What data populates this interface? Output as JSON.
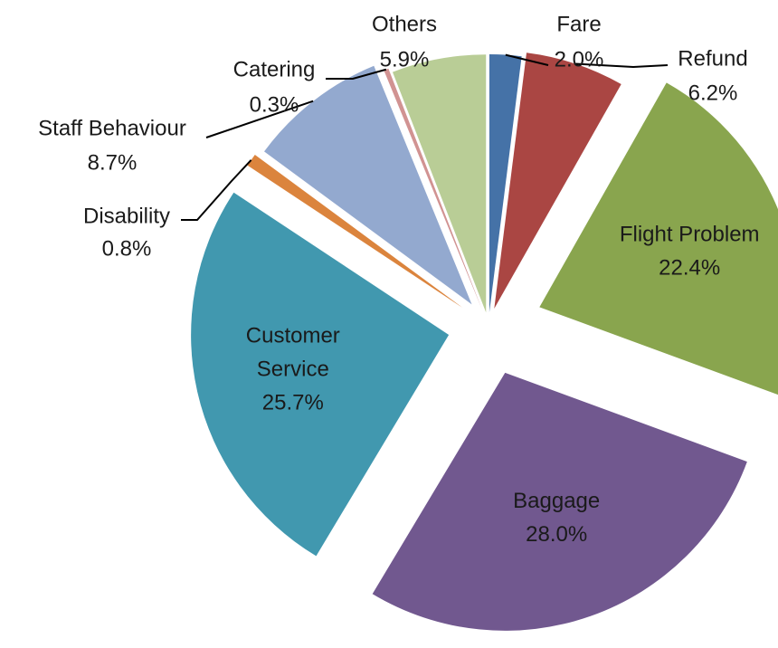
{
  "chart_data": {
    "type": "pie",
    "title": "",
    "start_angle_deg": 0,
    "direction": "clockwise",
    "exploded": true,
    "slices": [
      {
        "name": "Fare",
        "value": 2.0,
        "label": "2.0%",
        "color": "#4572A7"
      },
      {
        "name": "Refund",
        "value": 6.2,
        "label": "6.2%",
        "color": "#AA4643"
      },
      {
        "name": "Flight Problem",
        "value": 22.4,
        "label": "22.4%",
        "color": "#89A54E"
      },
      {
        "name": "Baggage",
        "value": 28.0,
        "label": "28.0%",
        "color": "#71588F"
      },
      {
        "name": "Customer Service",
        "value": 25.7,
        "label": "25.7%",
        "color": "#4198AF"
      },
      {
        "name": "Disability",
        "value": 0.8,
        "label": "0.8%",
        "color": "#DB843D"
      },
      {
        "name": "Staff Behaviour",
        "value": 8.7,
        "label": "8.7%",
        "color": "#93A9CF"
      },
      {
        "name": "Catering",
        "value": 0.3,
        "label": "0.3%",
        "color": "#D19392"
      },
      {
        "name": "Others",
        "value": 5.9,
        "label": "5.9%",
        "color": "#B9CD96"
      }
    ]
  }
}
